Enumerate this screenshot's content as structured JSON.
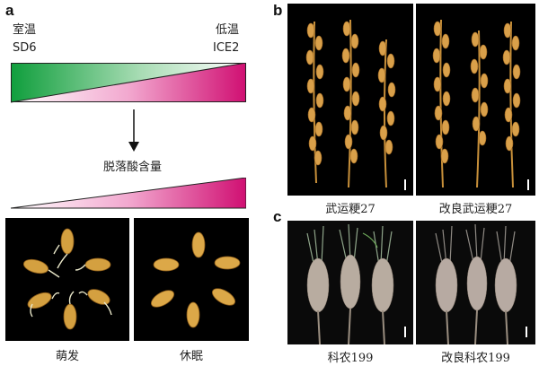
{
  "panels": {
    "a": {
      "letter": "a",
      "left_top": "室温",
      "left_bottom": "SD6",
      "right_top": "低温",
      "right_bottom": "ICE2",
      "level_label": "脱落酸含量",
      "photo_left_caption": "萌发",
      "photo_right_caption": "休眠",
      "colors": {
        "green": "#1aa84a",
        "magenta": "#d8137a"
      }
    },
    "b": {
      "letter": "b",
      "left_caption": "武运粳27",
      "right_caption": "改良武运粳27"
    },
    "c": {
      "letter": "c",
      "left_caption": "科农199",
      "right_caption": "改良科农199"
    }
  }
}
